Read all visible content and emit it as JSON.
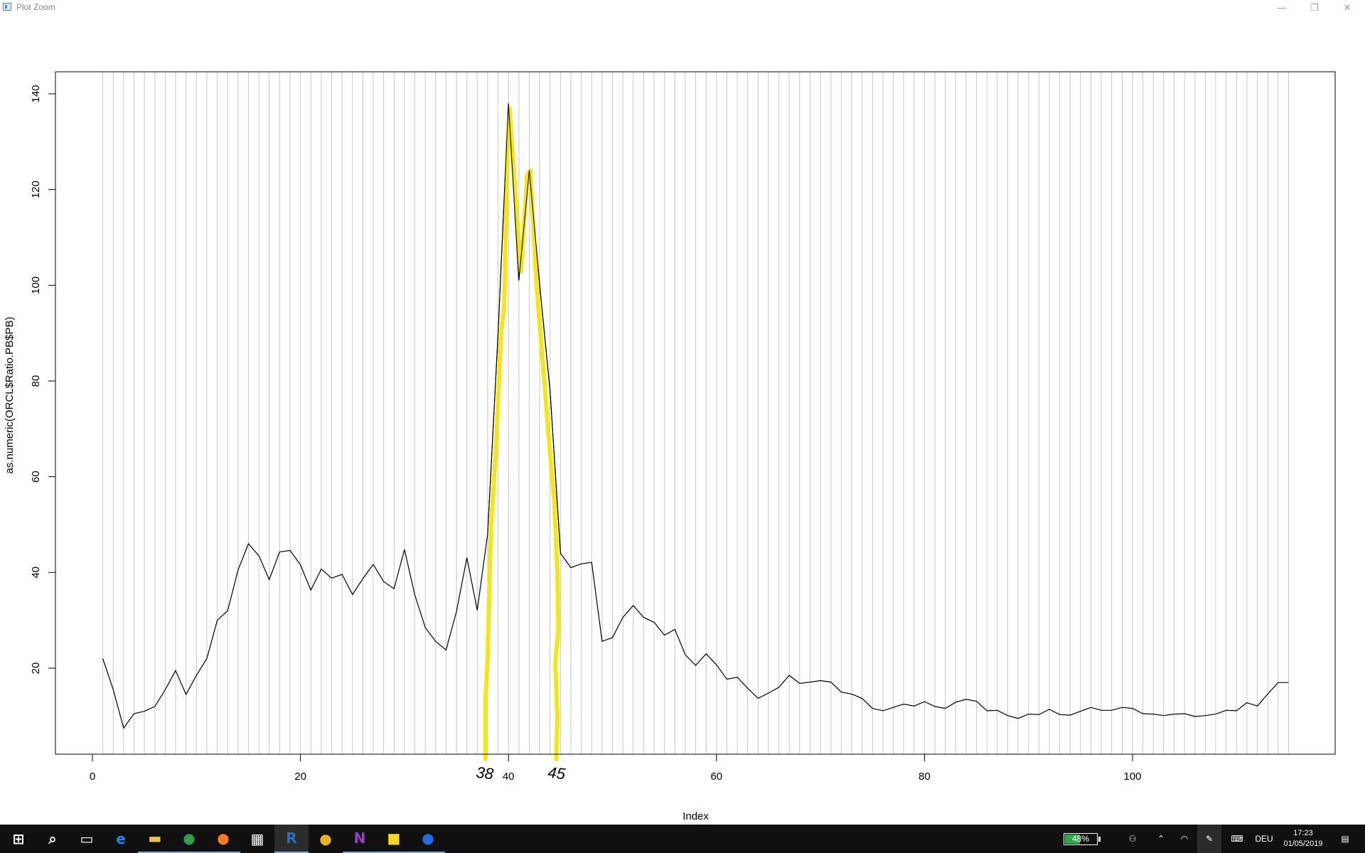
{
  "window": {
    "title": "Plot Zoom",
    "minimize_glyph": "—",
    "restore_glyph": "❐",
    "close_glyph": "✕"
  },
  "chart_data": {
    "type": "line",
    "title": "",
    "xlabel": "Index",
    "ylabel": "as.numeric(ORCL$Ratio.PB$PB)",
    "xlim": [
      0,
      115
    ],
    "ylim": [
      0,
      140
    ],
    "x_ticks": [
      0,
      20,
      40,
      60,
      80,
      100
    ],
    "y_ticks": [
      20,
      40,
      60,
      80,
      100,
      120,
      140
    ],
    "x_tick_labels": [
      "0",
      "20",
      "40",
      "60",
      "80",
      "100"
    ],
    "y_tick_labels": [
      "20",
      "40",
      "60",
      "80",
      "100",
      "120",
      "140"
    ],
    "grid": "vertical lines at every index 1–115",
    "series": [
      {
        "color": "#000000",
        "x": [
          1,
          2,
          3,
          4,
          5,
          6,
          7,
          8,
          9,
          10,
          11,
          12,
          13,
          14,
          15,
          16,
          17,
          18,
          19,
          20,
          21,
          22,
          23,
          24,
          25,
          26,
          27,
          28,
          29,
          30,
          31,
          32,
          33,
          34,
          35,
          36,
          37,
          38,
          39,
          40,
          41,
          42,
          43,
          44,
          45,
          46,
          47,
          48,
          49,
          50,
          51,
          52,
          53,
          54,
          55,
          56,
          57,
          58,
          59,
          60,
          61,
          62,
          63,
          64,
          65,
          66,
          67,
          68,
          69,
          70,
          71,
          72,
          73,
          74,
          75,
          76,
          77,
          78,
          79,
          80,
          81,
          82,
          83,
          84,
          85,
          86,
          87,
          88,
          89,
          90,
          91,
          92,
          93,
          94,
          95,
          96,
          97,
          98,
          99,
          100,
          101,
          102,
          103,
          104,
          105,
          106,
          107,
          108,
          109,
          110,
          111,
          112,
          113,
          114,
          115
        ],
        "y": [
          22,
          15.5,
          7.5,
          10.5,
          11,
          12,
          15.5,
          19.5,
          14.5,
          18.5,
          22,
          30,
          32,
          40.5,
          46,
          43.5,
          38.5,
          44.3,
          44.6,
          41.6,
          36.3,
          40.7,
          38.8,
          39.6,
          35.4,
          38.7,
          41.7,
          38.1,
          36.6,
          44.8,
          35.3,
          28.5,
          25.6,
          23.8,
          31.8,
          43.1,
          32.1,
          48,
          90,
          138,
          101,
          124,
          100,
          78,
          44,
          41,
          41.8,
          42.1,
          25.6,
          26.4,
          30.6,
          33.1,
          30.6,
          29.6,
          26.9,
          28.1,
          22.8,
          20.6,
          23,
          20.7,
          17.7,
          18.1,
          15.8,
          13.7,
          14.8,
          16,
          18.5,
          16.8,
          17.1,
          17.4,
          17.1,
          15,
          14.6,
          13.7,
          11.6,
          11.1,
          11.8,
          12.5,
          12.1,
          13,
          12,
          11.6,
          12.9,
          13.5,
          13.1,
          11.1,
          11.2,
          10.1,
          9.5,
          10.4,
          10.3,
          11.4,
          10.3,
          10.2,
          11,
          11.8,
          11.2,
          11.2,
          11.8,
          11.6,
          10.5,
          10.4,
          10.1,
          10.4,
          10.5,
          9.9,
          10.1,
          10.4,
          11.2,
          11.1,
          12.8,
          12.1,
          14.6,
          17,
          17
        ]
      }
    ],
    "annotations": [
      {
        "text": "38",
        "x": 37.7
      },
      {
        "text": "45",
        "x": 44.6
      }
    ],
    "highlight": {
      "color": "#f5e400",
      "x": [
        37.8,
        37.8,
        38.0,
        38.3,
        38.8,
        39.3,
        39.6,
        39.9,
        40.1,
        40.7,
        41.2,
        41.8,
        42.1,
        42.7,
        43.3,
        43.8,
        44.4,
        44.7,
        44.8,
        44.5,
        44.7,
        44.6
      ],
      "y": [
        1,
        14,
        22,
        48,
        66,
        90,
        96,
        128,
        137,
        118,
        103,
        123,
        124,
        100,
        84,
        70,
        55,
        40,
        28,
        21,
        10,
        1
      ]
    }
  },
  "taskbar": {
    "apps": [
      {
        "name": "start-button",
        "glyph": "⊞",
        "color": "#ffffff"
      },
      {
        "name": "search-button",
        "glyph": "⌕",
        "color": "#ffffff"
      },
      {
        "name": "task-view-button",
        "glyph": "▭",
        "color": "#ffffff"
      },
      {
        "name": "edge-app",
        "glyph": "e",
        "color": "#1e88e5"
      },
      {
        "name": "file-explorer-app",
        "glyph": "▬",
        "color": "#f2c14e"
      },
      {
        "name": "chrome-app",
        "glyph": "●",
        "color": "#2e9e4f"
      },
      {
        "name": "firefox-app",
        "glyph": "●",
        "color": "#ff7a1a"
      },
      {
        "name": "calculator-app",
        "glyph": "▦",
        "color": "#ffffff"
      },
      {
        "name": "r-app",
        "glyph": "R",
        "color": "#2f6fbf"
      },
      {
        "name": "ideas-app",
        "glyph": "●",
        "color": "#e8b423"
      },
      {
        "name": "onenote-app",
        "glyph": "N",
        "color": "#9b3fc4"
      },
      {
        "name": "sticky-notes-app",
        "glyph": "■",
        "color": "#f9d71c"
      },
      {
        "name": "maps-app",
        "glyph": "●",
        "color": "#1f6fe0"
      }
    ],
    "battery": "48%",
    "language": "DEU",
    "time": "17:23",
    "date": "01/05/2019"
  }
}
